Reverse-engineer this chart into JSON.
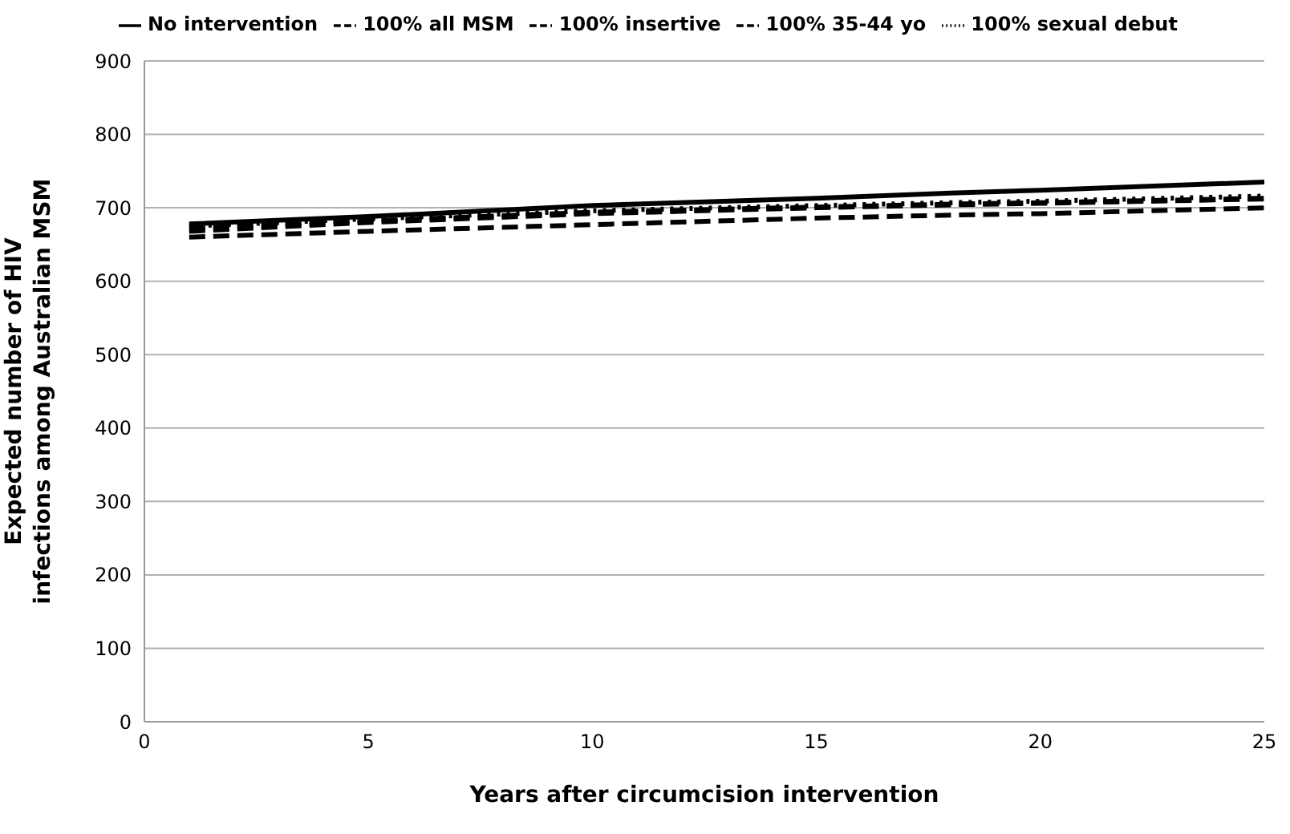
{
  "chart_data": {
    "type": "line",
    "xlabel": "Years after circumcision intervention",
    "ylabel": "Expected number of HIV infections among Australian MSM",
    "x": [
      1,
      5,
      10,
      15,
      18,
      20,
      25
    ],
    "series": [
      {
        "name": "No intervention",
        "color": "#000000",
        "line_style": "solid",
        "values": [
          678,
          688,
          703,
          713,
          720,
          724,
          735
        ]
      },
      {
        "name": "100% all MSM",
        "color": "#000000",
        "line_style": "dashed",
        "values": [
          660,
          668,
          677,
          686,
          690,
          692,
          700
        ]
      },
      {
        "name": "100% insertive",
        "color": "#000000",
        "line_style": "dashed",
        "values": [
          668,
          680,
          692,
          700,
          704,
          706,
          712
        ]
      },
      {
        "name": "100% 35-44 yo",
        "color": "#000000",
        "line_style": "dashed",
        "values": [
          672,
          682,
          694,
          701,
          705,
          707,
          713
        ]
      },
      {
        "name": "100% sexual debut",
        "color": "#000000",
        "line_style": "dotted",
        "values": [
          675,
          685,
          696,
          703,
          707,
          709,
          716
        ]
      }
    ],
    "xlim": [
      0,
      25
    ],
    "xticks": [
      0,
      5,
      10,
      15,
      20,
      25
    ],
    "ylim": [
      0,
      900
    ],
    "yticks": [
      0,
      100,
      200,
      300,
      400,
      500,
      600,
      700,
      800,
      900
    ],
    "grid": "y",
    "legend": "top",
    "marker": "none"
  }
}
